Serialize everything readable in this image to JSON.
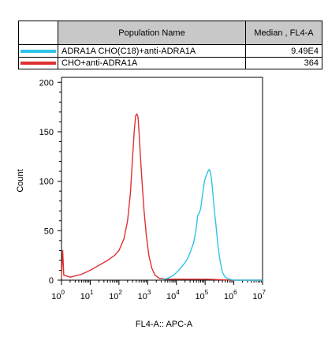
{
  "table": {
    "header_name": "Population Name",
    "header_median": "Median , FL4-A",
    "rows": [
      {
        "name": "ADRA1A CHO(C18)+anti-ADRA1A",
        "median": "9.49E4",
        "color": "#2ec4e8"
      },
      {
        "name": "CHO+anti-ADRA1A",
        "median": "364",
        "color": "#e03030"
      }
    ]
  },
  "chart_data": {
    "type": "area",
    "xlabel": "FL4-A:: APC-A",
    "ylabel": "Count",
    "x_scale": "log",
    "xlim": [
      1,
      10000000
    ],
    "ylim": [
      0,
      205
    ],
    "y_ticks": [
      0,
      50,
      100,
      150,
      200
    ],
    "x_ticks": [
      {
        "value": 1,
        "base": "10",
        "exp": "0"
      },
      {
        "value": 10,
        "base": "10",
        "exp": "1"
      },
      {
        "value": 100,
        "base": "10",
        "exp": "2"
      },
      {
        "value": 1000,
        "base": "10",
        "exp": "3"
      },
      {
        "value": 10000,
        "base": "10",
        "exp": "4"
      },
      {
        "value": 100000,
        "base": "10",
        "exp": "5"
      },
      {
        "value": 1000000,
        "base": "10",
        "exp": "6"
      },
      {
        "value": 10000000,
        "base": "10",
        "exp": "7"
      }
    ],
    "series": [
      {
        "name": "CHO+anti-ADRA1A",
        "color": "#e03030",
        "points": [
          [
            1,
            2
          ],
          [
            1.1,
            30
          ],
          [
            1.2,
            5
          ],
          [
            2,
            3
          ],
          [
            5,
            6
          ],
          [
            10,
            10
          ],
          [
            20,
            15
          ],
          [
            40,
            20
          ],
          [
            70,
            25
          ],
          [
            100,
            30
          ],
          [
            150,
            42
          ],
          [
            200,
            60
          ],
          [
            250,
            88
          ],
          [
            300,
            125
          ],
          [
            340,
            150
          ],
          [
            380,
            166
          ],
          [
            420,
            168
          ],
          [
            460,
            165
          ],
          [
            500,
            150
          ],
          [
            560,
            125
          ],
          [
            650,
            95
          ],
          [
            750,
            70
          ],
          [
            900,
            45
          ],
          [
            1100,
            25
          ],
          [
            1400,
            12
          ],
          [
            1800,
            5
          ],
          [
            2500,
            2
          ],
          [
            4000,
            1
          ],
          [
            10000,
            1
          ],
          [
            100000,
            1
          ],
          [
            1000000,
            0
          ],
          [
            10000000,
            0
          ]
        ]
      },
      {
        "name": "ADRA1A CHO(C18)+anti-ADRA1A",
        "color": "#2ec4e8",
        "points": [
          [
            3000,
            0
          ],
          [
            5000,
            2
          ],
          [
            8000,
            5
          ],
          [
            12000,
            10
          ],
          [
            18000,
            16
          ],
          [
            25000,
            22
          ],
          [
            32000,
            30
          ],
          [
            40000,
            38
          ],
          [
            48000,
            50
          ],
          [
            55000,
            65
          ],
          [
            62000,
            68
          ],
          [
            70000,
            72
          ],
          [
            80000,
            85
          ],
          [
            95000,
            100
          ],
          [
            110000,
            106
          ],
          [
            125000,
            110
          ],
          [
            140000,
            112
          ],
          [
            155000,
            108
          ],
          [
            170000,
            100
          ],
          [
            190000,
            85
          ],
          [
            210000,
            70
          ],
          [
            240000,
            55
          ],
          [
            280000,
            35
          ],
          [
            330000,
            20
          ],
          [
            400000,
            8
          ],
          [
            500000,
            3
          ],
          [
            700000,
            1
          ],
          [
            1000000,
            0
          ],
          [
            10000000,
            0
          ]
        ]
      }
    ]
  }
}
